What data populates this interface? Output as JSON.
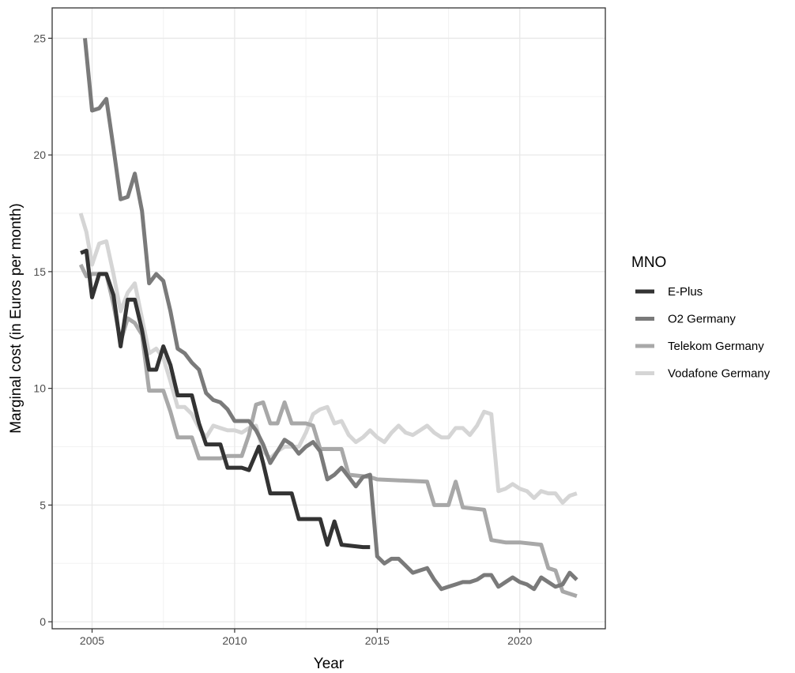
{
  "chart_data": {
    "type": "line",
    "title": "",
    "xlabel": "Year",
    "ylabel": "Marginal cost (in Euros per month)",
    "xlim": [
      2003.6,
      2023.0
    ],
    "ylim": [
      -0.3,
      26.3
    ],
    "xticks": [
      2005,
      2010,
      2015,
      2020
    ],
    "yticks": [
      0,
      5,
      10,
      15,
      20,
      25
    ],
    "xtick_labels": [
      "2005",
      "2010",
      "2015",
      "2020"
    ],
    "ytick_labels": [
      "0",
      "5",
      "10",
      "15",
      "20",
      "25"
    ],
    "grid": true,
    "legend": {
      "title": "MNO",
      "position": "right"
    },
    "series": [
      {
        "name": "E-Plus",
        "color": "#333333",
        "points": [
          [
            2004.6,
            15.8
          ],
          [
            2004.8,
            15.9
          ],
          [
            2005.0,
            13.9
          ],
          [
            2005.25,
            14.9
          ],
          [
            2005.5,
            14.9
          ],
          [
            2005.75,
            14.0
          ],
          [
            2006.0,
            11.8
          ],
          [
            2006.25,
            13.8
          ],
          [
            2006.5,
            13.8
          ],
          [
            2006.75,
            12.5
          ],
          [
            2007.0,
            10.8
          ],
          [
            2007.25,
            10.8
          ],
          [
            2007.5,
            11.8
          ],
          [
            2007.75,
            11.0
          ],
          [
            2008.0,
            9.7
          ],
          [
            2008.5,
            9.7
          ],
          [
            2008.75,
            8.5
          ],
          [
            2009.0,
            7.6
          ],
          [
            2009.5,
            7.6
          ],
          [
            2009.75,
            6.6
          ],
          [
            2010.25,
            6.6
          ],
          [
            2010.5,
            6.5
          ],
          [
            2010.85,
            7.5
          ],
          [
            2011.0,
            6.8
          ],
          [
            2011.25,
            5.5
          ],
          [
            2011.5,
            5.5
          ],
          [
            2012.0,
            5.5
          ],
          [
            2012.25,
            4.4
          ],
          [
            2012.5,
            4.4
          ],
          [
            2013.0,
            4.4
          ],
          [
            2013.25,
            3.3
          ],
          [
            2013.5,
            4.3
          ],
          [
            2013.75,
            3.3
          ],
          [
            2014.5,
            3.2
          ],
          [
            2014.75,
            3.2
          ]
        ]
      },
      {
        "name": "O2 Germany",
        "color": "#7a7a7a",
        "points": [
          [
            2004.75,
            25.0
          ],
          [
            2005.0,
            21.9
          ],
          [
            2005.25,
            22.0
          ],
          [
            2005.5,
            22.4
          ],
          [
            2005.75,
            20.3
          ],
          [
            2006.0,
            18.1
          ],
          [
            2006.25,
            18.2
          ],
          [
            2006.5,
            19.2
          ],
          [
            2006.75,
            17.6
          ],
          [
            2007.0,
            14.5
          ],
          [
            2007.25,
            14.9
          ],
          [
            2007.5,
            14.6
          ],
          [
            2007.75,
            13.3
          ],
          [
            2008.0,
            11.7
          ],
          [
            2008.25,
            11.5
          ],
          [
            2008.5,
            11.1
          ],
          [
            2008.75,
            10.8
          ],
          [
            2009.0,
            9.8
          ],
          [
            2009.25,
            9.5
          ],
          [
            2009.5,
            9.4
          ],
          [
            2009.75,
            9.1
          ],
          [
            2010.0,
            8.6
          ],
          [
            2010.5,
            8.6
          ],
          [
            2010.75,
            8.2
          ],
          [
            2011.0,
            7.6
          ],
          [
            2011.25,
            6.8
          ],
          [
            2011.5,
            7.3
          ],
          [
            2011.75,
            7.8
          ],
          [
            2012.0,
            7.6
          ],
          [
            2012.25,
            7.2
          ],
          [
            2012.5,
            7.5
          ],
          [
            2012.75,
            7.7
          ],
          [
            2013.0,
            7.3
          ],
          [
            2013.25,
            6.1
          ],
          [
            2013.5,
            6.3
          ],
          [
            2013.75,
            6.6
          ],
          [
            2014.0,
            6.2
          ],
          [
            2014.25,
            5.8
          ],
          [
            2014.5,
            6.2
          ],
          [
            2014.75,
            6.3
          ],
          [
            2015.0,
            2.8
          ],
          [
            2015.25,
            2.5
          ],
          [
            2015.5,
            2.7
          ],
          [
            2015.75,
            2.7
          ],
          [
            2016.0,
            2.4
          ],
          [
            2016.25,
            2.1
          ],
          [
            2016.5,
            2.2
          ],
          [
            2016.75,
            2.3
          ],
          [
            2017.0,
            1.8
          ],
          [
            2017.25,
            1.4
          ],
          [
            2017.5,
            1.5
          ],
          [
            2017.75,
            1.6
          ],
          [
            2018.0,
            1.7
          ],
          [
            2018.25,
            1.7
          ],
          [
            2018.5,
            1.8
          ],
          [
            2018.75,
            2.0
          ],
          [
            2019.0,
            2.0
          ],
          [
            2019.25,
            1.5
          ],
          [
            2019.5,
            1.7
          ],
          [
            2019.75,
            1.9
          ],
          [
            2020.0,
            1.7
          ],
          [
            2020.25,
            1.6
          ],
          [
            2020.5,
            1.4
          ],
          [
            2020.75,
            1.9
          ],
          [
            2021.0,
            1.7
          ],
          [
            2021.25,
            1.5
          ],
          [
            2021.5,
            1.6
          ],
          [
            2021.75,
            2.1
          ],
          [
            2022.0,
            1.8
          ]
        ]
      },
      {
        "name": "Telekom Germany",
        "color": "#a8a8a8",
        "points": [
          [
            2004.6,
            15.3
          ],
          [
            2004.8,
            14.8
          ],
          [
            2005.0,
            14.9
          ],
          [
            2005.5,
            14.9
          ],
          [
            2005.75,
            13.6
          ],
          [
            2006.0,
            12.0
          ],
          [
            2006.25,
            13.0
          ],
          [
            2006.5,
            12.8
          ],
          [
            2006.75,
            12.3
          ],
          [
            2007.0,
            9.9
          ],
          [
            2007.5,
            9.9
          ],
          [
            2007.75,
            9.0
          ],
          [
            2008.0,
            7.9
          ],
          [
            2008.5,
            7.9
          ],
          [
            2008.75,
            7.0
          ],
          [
            2009.0,
            7.0
          ],
          [
            2009.5,
            7.0
          ],
          [
            2009.75,
            7.1
          ],
          [
            2010.25,
            7.1
          ],
          [
            2010.5,
            8.0
          ],
          [
            2010.75,
            9.3
          ],
          [
            2011.0,
            9.4
          ],
          [
            2011.25,
            8.5
          ],
          [
            2011.5,
            8.5
          ],
          [
            2011.75,
            9.4
          ],
          [
            2012.0,
            8.5
          ],
          [
            2012.5,
            8.5
          ],
          [
            2012.75,
            8.4
          ],
          [
            2013.0,
            7.4
          ],
          [
            2013.75,
            7.4
          ],
          [
            2014.0,
            6.3
          ],
          [
            2014.75,
            6.2
          ],
          [
            2015.0,
            6.1
          ],
          [
            2016.75,
            6.0
          ],
          [
            2017.0,
            5.0
          ],
          [
            2017.5,
            5.0
          ],
          [
            2017.75,
            6.0
          ],
          [
            2018.0,
            4.9
          ],
          [
            2018.75,
            4.8
          ],
          [
            2019.0,
            3.5
          ],
          [
            2019.5,
            3.4
          ],
          [
            2020.0,
            3.4
          ],
          [
            2020.75,
            3.3
          ],
          [
            2021.0,
            2.3
          ],
          [
            2021.25,
            2.2
          ],
          [
            2021.5,
            1.3
          ],
          [
            2022.0,
            1.1
          ]
        ]
      },
      {
        "name": "Vodafone Germany",
        "color": "#d5d5d5",
        "points": [
          [
            2004.6,
            17.5
          ],
          [
            2004.8,
            16.7
          ],
          [
            2005.0,
            15.3
          ],
          [
            2005.25,
            16.2
          ],
          [
            2005.5,
            16.3
          ],
          [
            2005.75,
            14.9
          ],
          [
            2006.0,
            13.3
          ],
          [
            2006.25,
            14.1
          ],
          [
            2006.5,
            14.5
          ],
          [
            2006.75,
            13.0
          ],
          [
            2007.0,
            11.5
          ],
          [
            2007.25,
            11.7
          ],
          [
            2007.5,
            11.3
          ],
          [
            2007.75,
            10.3
          ],
          [
            2008.0,
            9.2
          ],
          [
            2008.25,
            9.2
          ],
          [
            2008.5,
            8.9
          ],
          [
            2008.75,
            8.3
          ],
          [
            2009.0,
            7.9
          ],
          [
            2009.25,
            8.4
          ],
          [
            2009.5,
            8.3
          ],
          [
            2009.75,
            8.2
          ],
          [
            2010.0,
            8.2
          ],
          [
            2010.25,
            8.1
          ],
          [
            2010.5,
            8.3
          ],
          [
            2010.75,
            8.4
          ],
          [
            2011.0,
            7.3
          ],
          [
            2011.25,
            7.0
          ],
          [
            2011.5,
            7.3
          ],
          [
            2011.75,
            7.5
          ],
          [
            2012.0,
            7.5
          ],
          [
            2012.25,
            7.5
          ],
          [
            2012.5,
            8.1
          ],
          [
            2012.75,
            8.9
          ],
          [
            2013.0,
            9.1
          ],
          [
            2013.25,
            9.2
          ],
          [
            2013.5,
            8.5
          ],
          [
            2013.75,
            8.6
          ],
          [
            2014.0,
            8.0
          ],
          [
            2014.25,
            7.7
          ],
          [
            2014.5,
            7.9
          ],
          [
            2014.75,
            8.2
          ],
          [
            2015.0,
            7.9
          ],
          [
            2015.25,
            7.7
          ],
          [
            2015.5,
            8.1
          ],
          [
            2015.75,
            8.4
          ],
          [
            2016.0,
            8.1
          ],
          [
            2016.25,
            8.0
          ],
          [
            2016.5,
            8.2
          ],
          [
            2016.75,
            8.4
          ],
          [
            2017.0,
            8.1
          ],
          [
            2017.25,
            7.9
          ],
          [
            2017.5,
            7.9
          ],
          [
            2017.75,
            8.3
          ],
          [
            2018.0,
            8.3
          ],
          [
            2018.25,
            8.0
          ],
          [
            2018.5,
            8.4
          ],
          [
            2018.75,
            9.0
          ],
          [
            2019.0,
            8.9
          ],
          [
            2019.25,
            5.6
          ],
          [
            2019.5,
            5.7
          ],
          [
            2019.75,
            5.9
          ],
          [
            2020.0,
            5.7
          ],
          [
            2020.25,
            5.6
          ],
          [
            2020.5,
            5.3
          ],
          [
            2020.75,
            5.6
          ],
          [
            2021.0,
            5.5
          ],
          [
            2021.25,
            5.5
          ],
          [
            2021.5,
            5.1
          ],
          [
            2021.75,
            5.4
          ],
          [
            2022.0,
            5.5
          ]
        ]
      }
    ]
  }
}
